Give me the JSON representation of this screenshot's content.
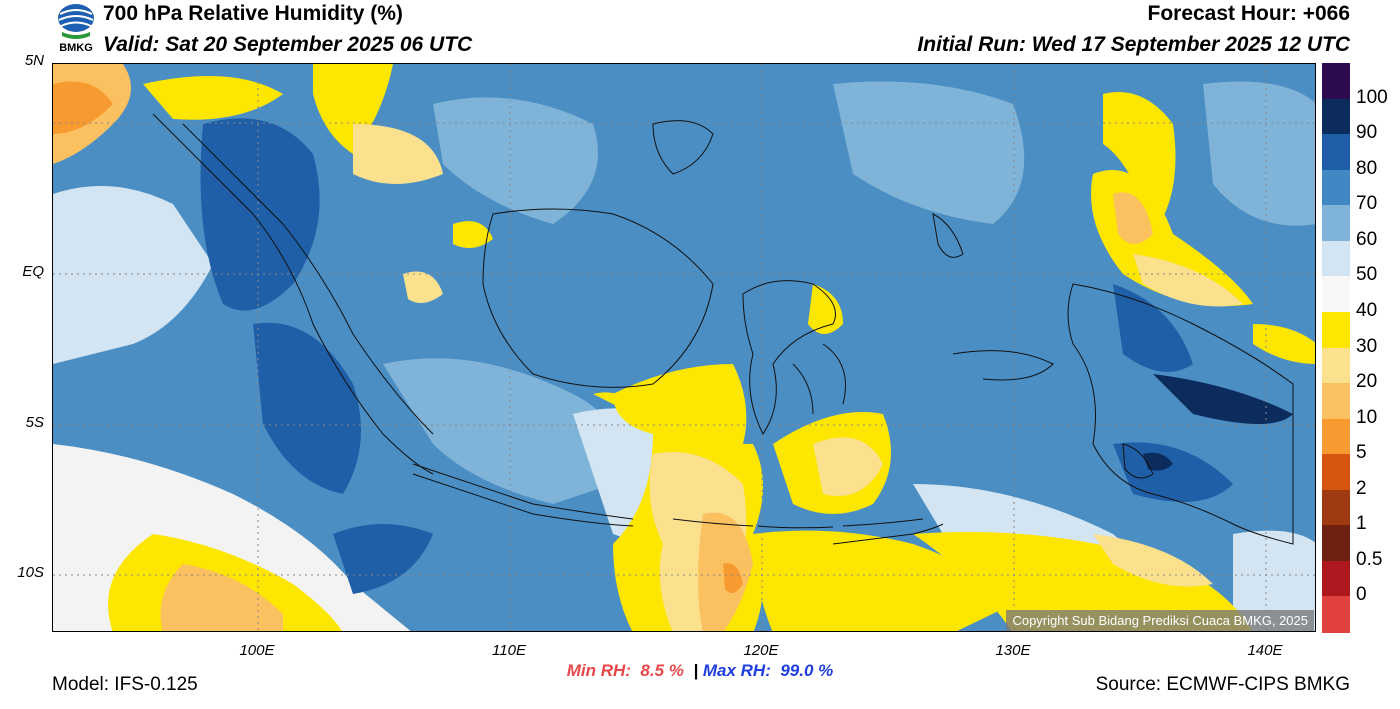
{
  "header": {
    "title": "700 hPa Relative Humidity (%)",
    "valid": "Valid: Sat 20 September 2025 06 UTC",
    "forecast_hour": "Forecast Hour: +066",
    "initial_run": "Initial Run: Wed 17 September 2025 12 UTC"
  },
  "logo_text": "BMKG",
  "map": {
    "lat_labels": [
      "5N",
      "EQ",
      "5S",
      "10S"
    ],
    "lon_labels": [
      "100E",
      "110E",
      "120E",
      "130E",
      "140E"
    ],
    "copyright": "Copyright Sub Bidang Prediksi Cuaca BMKG, 2025"
  },
  "colorbar": {
    "labels": [
      "100",
      "90",
      "80",
      "70",
      "60",
      "50",
      "40",
      "30",
      "20",
      "10",
      "5",
      "2",
      "1",
      "0.5",
      "0"
    ],
    "colors": [
      "#2c0b4e",
      "#0c2c5e",
      "#1f5fa8",
      "#3f88c4",
      "#7fb3d8",
      "#d3e5f2",
      "#f7f7f7",
      "#fde600",
      "#fbe08e",
      "#fbc060",
      "#f79a30",
      "#d85510",
      "#a03a10",
      "#702010",
      "#b01820",
      "#e04040"
    ]
  },
  "stats": {
    "min_label": "Min RH:",
    "min_value": "8.5 %",
    "separator": "|",
    "max_label": "Max RH:",
    "max_value": "99.0 %"
  },
  "footer": {
    "model": "Model: IFS-0.125",
    "source": "Source: ECMWF-CIPS BMKG"
  }
}
